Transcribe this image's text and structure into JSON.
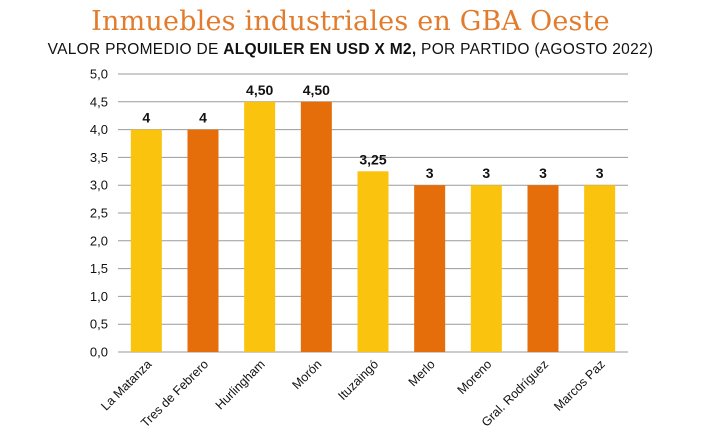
{
  "chart_data": {
    "type": "bar",
    "title": "Inmuebles industriales en GBA Oeste",
    "subtitle_parts": [
      "VALOR PROMEDIO DE ",
      "ALQUILER EN USD X M2,",
      " POR PARTIDO (AGOSTO 2022)"
    ],
    "xlabel": "",
    "ylabel": "",
    "ylim": [
      0,
      5
    ],
    "ytick_step": 0.5,
    "ytick_labels": [
      "0,0",
      "0,5",
      "1,0",
      "1,5",
      "2,0",
      "2,5",
      "3,0",
      "3,5",
      "4,0",
      "4,5",
      "5,0"
    ],
    "grid": true,
    "categories": [
      "La Matanza",
      "Tres de Febrero",
      "Hurlingham",
      "Morón",
      "Ituzaingó",
      "Merlo",
      "Moreno",
      "Gral. Rodríguez",
      "Marcos Paz"
    ],
    "values": [
      4,
      4,
      4.5,
      4.5,
      3.25,
      3,
      3,
      3,
      3
    ],
    "data_labels": [
      "4",
      "4",
      "4,50",
      "4,50",
      "3,25",
      "3",
      "3",
      "3",
      "3"
    ],
    "bar_colors": [
      "#fac30d",
      "#e56e0b",
      "#fac30d",
      "#e56e0b",
      "#fac30d",
      "#e56e0b",
      "#fac30d",
      "#e56e0b",
      "#fac30d"
    ],
    "colors": {
      "title": "#e27c2c",
      "yellow": "#fac30d",
      "orange": "#e56e0b",
      "grid": "#9a9a9a"
    }
  }
}
